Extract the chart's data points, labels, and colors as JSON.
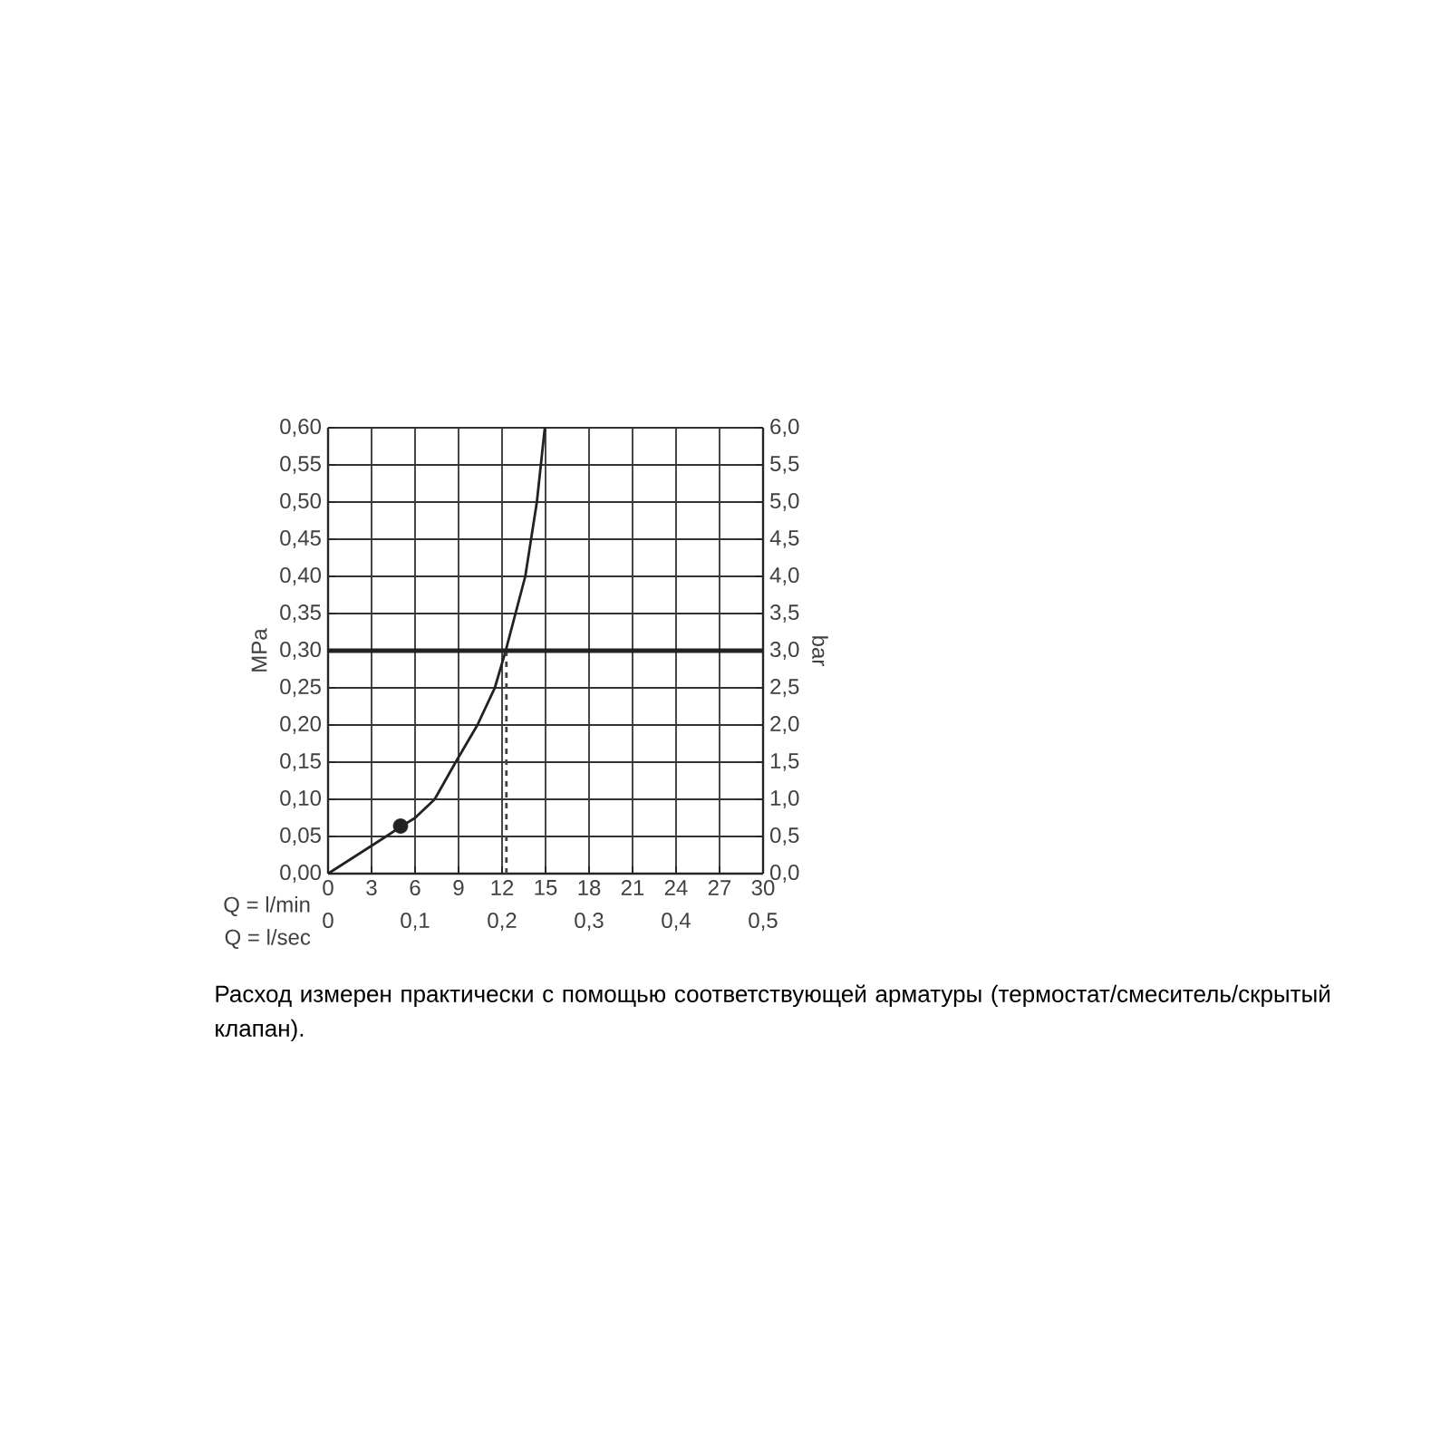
{
  "chart_data": {
    "type": "line",
    "xlabel": "Q = l/min",
    "ylabel": "MPa",
    "y2label": "bar",
    "x2label": "Q = l/sec",
    "xlim": [
      0,
      30
    ],
    "xticks": [
      0,
      3,
      6,
      9,
      12,
      15,
      18,
      21,
      24,
      27,
      30
    ],
    "ylim": [
      0,
      0.6
    ],
    "yticks": [
      {
        "value": 0,
        "label": "0,00"
      },
      {
        "value": 0.05,
        "label": "0,05"
      },
      {
        "value": 0.1,
        "label": "0,10"
      },
      {
        "value": 0.15,
        "label": "0,15"
      },
      {
        "value": 0.2,
        "label": "0,20"
      },
      {
        "value": 0.25,
        "label": "0,25"
      },
      {
        "value": 0.3,
        "label": "0,30"
      },
      {
        "value": 0.35,
        "label": "0,35"
      },
      {
        "value": 0.4,
        "label": "0,40"
      },
      {
        "value": 0.45,
        "label": "0,45"
      },
      {
        "value": 0.5,
        "label": "0,50"
      },
      {
        "value": 0.55,
        "label": "0,55"
      },
      {
        "value": 0.6,
        "label": "0,60"
      }
    ],
    "y2lim": [
      0,
      6
    ],
    "y2ticks": [
      {
        "value": 0,
        "label": "0,0"
      },
      {
        "value": 0.5,
        "label": "0,5"
      },
      {
        "value": 1,
        "label": "1,0"
      },
      {
        "value": 1.5,
        "label": "1,5"
      },
      {
        "value": 2,
        "label": "2,0"
      },
      {
        "value": 2.5,
        "label": "2,5"
      },
      {
        "value": 3,
        "label": "3,0"
      },
      {
        "value": 3.5,
        "label": "3,5"
      },
      {
        "value": 4,
        "label": "4,0"
      },
      {
        "value": 4.5,
        "label": "4,5"
      },
      {
        "value": 5,
        "label": "5,0"
      },
      {
        "value": 5.5,
        "label": "5,5"
      },
      {
        "value": 6,
        "label": "6,0"
      }
    ],
    "x2lim": [
      0,
      0.5
    ],
    "x2ticks": [
      0,
      {
        "value": 0.1,
        "label": "0,1"
      },
      {
        "value": 0.2,
        "label": "0,2"
      },
      {
        "value": 0.3,
        "label": "0,3"
      },
      {
        "value": 0.4,
        "label": "0,4"
      },
      {
        "value": 0.5,
        "label": "0,5"
      }
    ],
    "grid": true,
    "series": [
      {
        "color": "#222222",
        "line_style": "solid",
        "x": [
          0,
          2,
          4,
          5,
          6,
          7.35,
          8.8,
          10.3,
          11.5,
          12.25,
          13.6,
          14.4,
          14.95
        ],
        "values": [
          0,
          0.025,
          0.05,
          0.063,
          0.075,
          0.1,
          0.15,
          0.2,
          0.25,
          0.3,
          0.4,
          0.5,
          0.6
        ]
      },
      {
        "type": "line",
        "color": "#444444",
        "line_style": "dashed",
        "x": [
          12.3,
          12.3
        ],
        "values": [
          0,
          0.3
        ]
      },
      {
        "type": "scatter",
        "color": "#222222",
        "marker": "circle",
        "x": [
          5
        ],
        "values": [
          0.064
        ]
      }
    ],
    "ref_lines": [
      {
        "axis": "y",
        "value": 0.3,
        "color": "#222222"
      }
    ],
    "annotations": [
      "Расход измерен практически с помощью соответствующей арматуры (термостат/смеситель/скрытый клапан)."
    ]
  }
}
